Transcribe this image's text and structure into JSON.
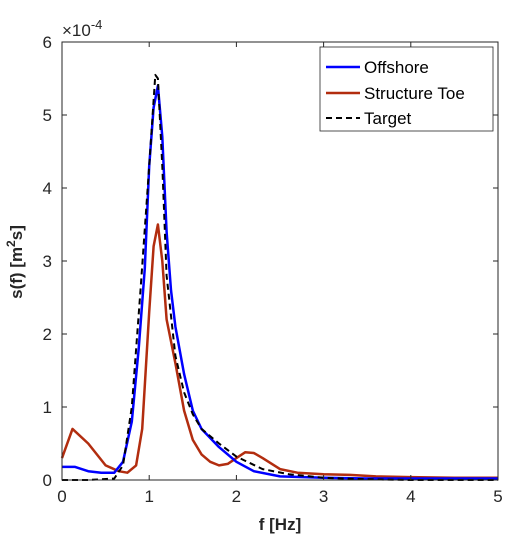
{
  "chart_data": {
    "type": "line",
    "xlabel": "f [Hz]",
    "ylabel": "s(f) [m²s]",
    "ylabel_main": "s(f) [m",
    "ylabel_sup": "2",
    "ylabel_end": "s]",
    "exponent_base": "×10",
    "exponent_power": "-4",
    "xlim": [
      0,
      5
    ],
    "ylim": [
      0,
      6
    ],
    "xticks": [
      "0",
      "1",
      "2",
      "3",
      "4",
      "5"
    ],
    "yticks": [
      "0",
      "1",
      "2",
      "3",
      "4",
      "5",
      "6"
    ],
    "legend_position": "top-right",
    "colors": {
      "offshore": "#0000ff",
      "structure_toe": "#b22d0f",
      "target": "#000000",
      "axis": "#262626"
    },
    "series": [
      {
        "name": "Offshore",
        "style": "solid",
        "x": [
          0.0,
          0.15,
          0.3,
          0.45,
          0.6,
          0.7,
          0.8,
          0.88,
          0.95,
          1.0,
          1.05,
          1.1,
          1.15,
          1.2,
          1.25,
          1.3,
          1.4,
          1.5,
          1.6,
          1.8,
          2.0,
          2.2,
          2.5,
          3.0,
          3.5,
          4.0,
          4.5,
          5.0
        ],
        "y": [
          0.18,
          0.18,
          0.12,
          0.1,
          0.1,
          0.25,
          0.8,
          1.8,
          2.9,
          4.3,
          5.1,
          5.4,
          4.7,
          3.4,
          2.6,
          2.1,
          1.45,
          0.95,
          0.7,
          0.45,
          0.25,
          0.12,
          0.05,
          0.03,
          0.02,
          0.02,
          0.02,
          0.02
        ]
      },
      {
        "name": "Structure Toe",
        "style": "solid",
        "x": [
          0.0,
          0.12,
          0.3,
          0.5,
          0.65,
          0.75,
          0.85,
          0.92,
          1.0,
          1.05,
          1.1,
          1.15,
          1.2,
          1.3,
          1.4,
          1.5,
          1.6,
          1.7,
          1.8,
          1.9,
          2.0,
          2.1,
          2.2,
          2.3,
          2.5,
          2.7,
          3.0,
          3.3,
          3.6,
          4.0,
          4.5,
          5.0
        ],
        "y": [
          0.3,
          0.7,
          0.5,
          0.2,
          0.12,
          0.1,
          0.2,
          0.7,
          2.3,
          3.2,
          3.5,
          3.0,
          2.2,
          1.6,
          0.95,
          0.55,
          0.35,
          0.25,
          0.2,
          0.22,
          0.3,
          0.38,
          0.37,
          0.3,
          0.15,
          0.1,
          0.08,
          0.07,
          0.05,
          0.04,
          0.03,
          0.03
        ]
      },
      {
        "name": "Target",
        "style": "dashed",
        "x": [
          0.0,
          0.3,
          0.6,
          0.7,
          0.8,
          0.9,
          1.0,
          1.07,
          1.1,
          1.15,
          1.2,
          1.3,
          1.4,
          1.5,
          1.6,
          1.8,
          2.0,
          2.3,
          2.6,
          3.0,
          3.5,
          4.0,
          4.5,
          5.0
        ],
        "y": [
          0.0,
          0.0,
          0.02,
          0.2,
          1.0,
          2.6,
          4.3,
          5.55,
          5.5,
          4.3,
          2.8,
          1.7,
          1.2,
          0.9,
          0.7,
          0.5,
          0.32,
          0.15,
          0.08,
          0.03,
          0.01,
          0.0,
          0.0,
          0.0
        ]
      }
    ]
  }
}
